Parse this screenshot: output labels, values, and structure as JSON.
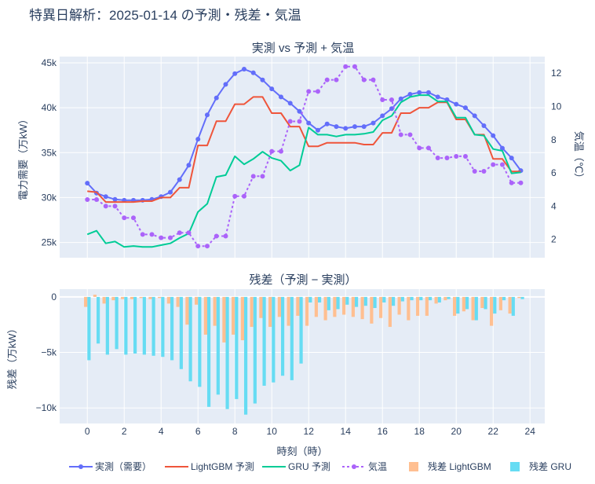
{
  "title": "特異日解析：2025-01-14 の予測・残差・気温",
  "colors": {
    "actual": "#636efa",
    "lgbm": "#ef553b",
    "gru": "#00cc96",
    "temp": "#ab63fa",
    "resid_lgbm": "#ffbf91",
    "resid_gru": "#66dcf3",
    "plot_bg": "#e5ecf6"
  },
  "chart_data": [
    {
      "type": "line",
      "title": "実測 vs 予測 + 気温",
      "ylabel": "電力需要（万kW）",
      "y2label": "気温（℃）",
      "ylim": [
        23300,
        45700
      ],
      "y2lim": [
        0.9,
        13.0
      ],
      "yticks": [
        25000,
        30000,
        35000,
        40000,
        45000
      ],
      "ytick_labels": [
        "25k",
        "30k",
        "35k",
        "40k",
        "45k"
      ],
      "y2ticks": [
        2,
        4,
        6,
        8,
        10,
        12
      ],
      "y2tick_labels": [
        "2",
        "4",
        "6",
        "8",
        "10",
        "12"
      ],
      "x": [
        0,
        0.5,
        1,
        1.5,
        2,
        2.5,
        3,
        3.5,
        4,
        4.5,
        5,
        5.5,
        6,
        6.5,
        7,
        7.5,
        8,
        8.5,
        9,
        9.5,
        10,
        10.5,
        11,
        11.5,
        12,
        12.5,
        13,
        13.5,
        14,
        14.5,
        15,
        15.5,
        16,
        16.5,
        17,
        17.5,
        18,
        18.5,
        19,
        19.5,
        20,
        20.5,
        21,
        21.5,
        22,
        22.5,
        23,
        23.5
      ],
      "series": [
        {
          "name": "実測（需要）",
          "axis": "y",
          "values": [
            31600,
            30500,
            30100,
            29800,
            29700,
            29700,
            29700,
            29800,
            30100,
            30600,
            32000,
            33600,
            36500,
            39200,
            41100,
            42600,
            43800,
            44300,
            43900,
            43100,
            42100,
            41200,
            40500,
            39600,
            38300,
            37500,
            38200,
            37900,
            37700,
            37900,
            37900,
            38300,
            39100,
            39900,
            41000,
            41500,
            41700,
            41700,
            41200,
            40900,
            40400,
            40000,
            39100,
            38000,
            36900,
            35500,
            34400,
            33000
          ]
        },
        {
          "name": "LightGBM 予測",
          "axis": "y",
          "values": [
            30700,
            30600,
            29500,
            29500,
            29500,
            29500,
            29600,
            29600,
            30000,
            30000,
            31100,
            31100,
            35800,
            35800,
            38500,
            38500,
            40400,
            40400,
            41200,
            41200,
            39400,
            39400,
            37900,
            37900,
            35700,
            35700,
            36100,
            36100,
            36100,
            36100,
            35900,
            35900,
            37200,
            37200,
            39400,
            39400,
            40000,
            40000,
            40600,
            40600,
            38700,
            38700,
            37000,
            37000,
            34300,
            34300,
            32900,
            32900
          ]
        },
        {
          "name": "GRU 予測",
          "axis": "y",
          "values": [
            25900,
            26300,
            24900,
            25100,
            24500,
            24600,
            24500,
            24500,
            24700,
            24900,
            25500,
            26000,
            28400,
            29300,
            32300,
            32500,
            34600,
            33700,
            34300,
            35100,
            34400,
            34100,
            33000,
            33600,
            37800,
            37000,
            37000,
            36800,
            37000,
            37000,
            37100,
            37300,
            38600,
            39100,
            40600,
            41200,
            41400,
            41400,
            40700,
            40700,
            38900,
            38900,
            37000,
            36900,
            35400,
            35200,
            32700,
            32800
          ]
        },
        {
          "name": "気温",
          "axis": "y2",
          "values": [
            4.4,
            4.4,
            4.0,
            4.0,
            3.3,
            3.3,
            2.3,
            2.3,
            2.1,
            2.1,
            2.4,
            2.4,
            1.6,
            1.6,
            2.2,
            2.2,
            4.6,
            4.6,
            5.8,
            5.8,
            7.3,
            7.3,
            9.1,
            9.1,
            10.9,
            10.9,
            11.6,
            11.6,
            12.4,
            12.4,
            11.6,
            11.6,
            10.4,
            10.4,
            8.3,
            8.3,
            7.5,
            7.5,
            6.9,
            6.9,
            7.0,
            7.0,
            6.1,
            6.1,
            6.5,
            6.5,
            5.4,
            5.4
          ]
        }
      ]
    },
    {
      "type": "bar",
      "title": "残差（予測 − 実測）",
      "xlabel": "時刻（時）",
      "ylabel": "残差（万kW）",
      "ylim": [
        -11400,
        700
      ],
      "yticks": [
        0,
        -5000,
        -10000
      ],
      "ytick_labels": [
        "0",
        "−5k",
        "−10k"
      ],
      "xlim": [
        -1.5,
        24.8
      ],
      "xticks": [
        0,
        2,
        4,
        6,
        8,
        10,
        12,
        14,
        16,
        18,
        20,
        22,
        24
      ],
      "x": [
        0,
        0.5,
        1,
        1.5,
        2,
        2.5,
        3,
        3.5,
        4,
        4.5,
        5,
        5.5,
        6,
        6.5,
        7,
        7.5,
        8,
        8.5,
        9,
        9.5,
        10,
        10.5,
        11,
        11.5,
        12,
        12.5,
        13,
        13.5,
        14,
        14.5,
        15,
        15.5,
        16,
        16.5,
        17,
        17.5,
        18,
        18.5,
        19,
        19.5,
        20,
        20.5,
        21,
        21.5,
        22,
        22.5,
        23,
        23.5
      ],
      "series": [
        {
          "name": "残差 LightGBM",
          "values": [
            -900,
            200,
            -600,
            -300,
            -200,
            -200,
            -100,
            -200,
            -100,
            -600,
            -900,
            -2500,
            -700,
            -3400,
            -2600,
            -4100,
            -3400,
            -3900,
            -2700,
            -1900,
            -2700,
            -1800,
            -2600,
            -1700,
            -2600,
            -1800,
            -2100,
            -1800,
            -1600,
            -1800,
            -2000,
            -2400,
            -1900,
            -2700,
            -1600,
            -2100,
            -1700,
            -1700,
            -600,
            -300,
            -1700,
            -1300,
            -2100,
            -1000,
            -2600,
            -1200,
            -1500,
            -100
          ]
        },
        {
          "name": "残差 GRU",
          "values": [
            -5700,
            -4200,
            -5200,
            -4700,
            -5200,
            -5100,
            -5200,
            -5300,
            -5400,
            -5700,
            -6500,
            -7600,
            -8100,
            -9900,
            -8800,
            -10100,
            -9200,
            -10600,
            -9600,
            -8000,
            -7700,
            -7100,
            -7500,
            -6000,
            -500,
            -500,
            -1200,
            -1100,
            -700,
            -900,
            -800,
            -1000,
            -500,
            -800,
            -400,
            -300,
            -300,
            -300,
            -500,
            -200,
            -1500,
            -1100,
            -2100,
            -1100,
            -1500,
            -300,
            -1700,
            -200
          ]
        }
      ]
    }
  ],
  "legend": [
    {
      "label": "実測（需要）",
      "kind": "line-marker",
      "color": "#636efa"
    },
    {
      "label": "LightGBM 予測",
      "kind": "line",
      "color": "#ef553b"
    },
    {
      "label": "GRU 予測",
      "kind": "line",
      "color": "#00cc96"
    },
    {
      "label": "気温",
      "kind": "dash-marker",
      "color": "#ab63fa"
    },
    {
      "label": "残差 LightGBM",
      "kind": "box",
      "color": "#ffbf91"
    },
    {
      "label": "残差 GRU",
      "kind": "box",
      "color": "#66dcf3"
    }
  ]
}
